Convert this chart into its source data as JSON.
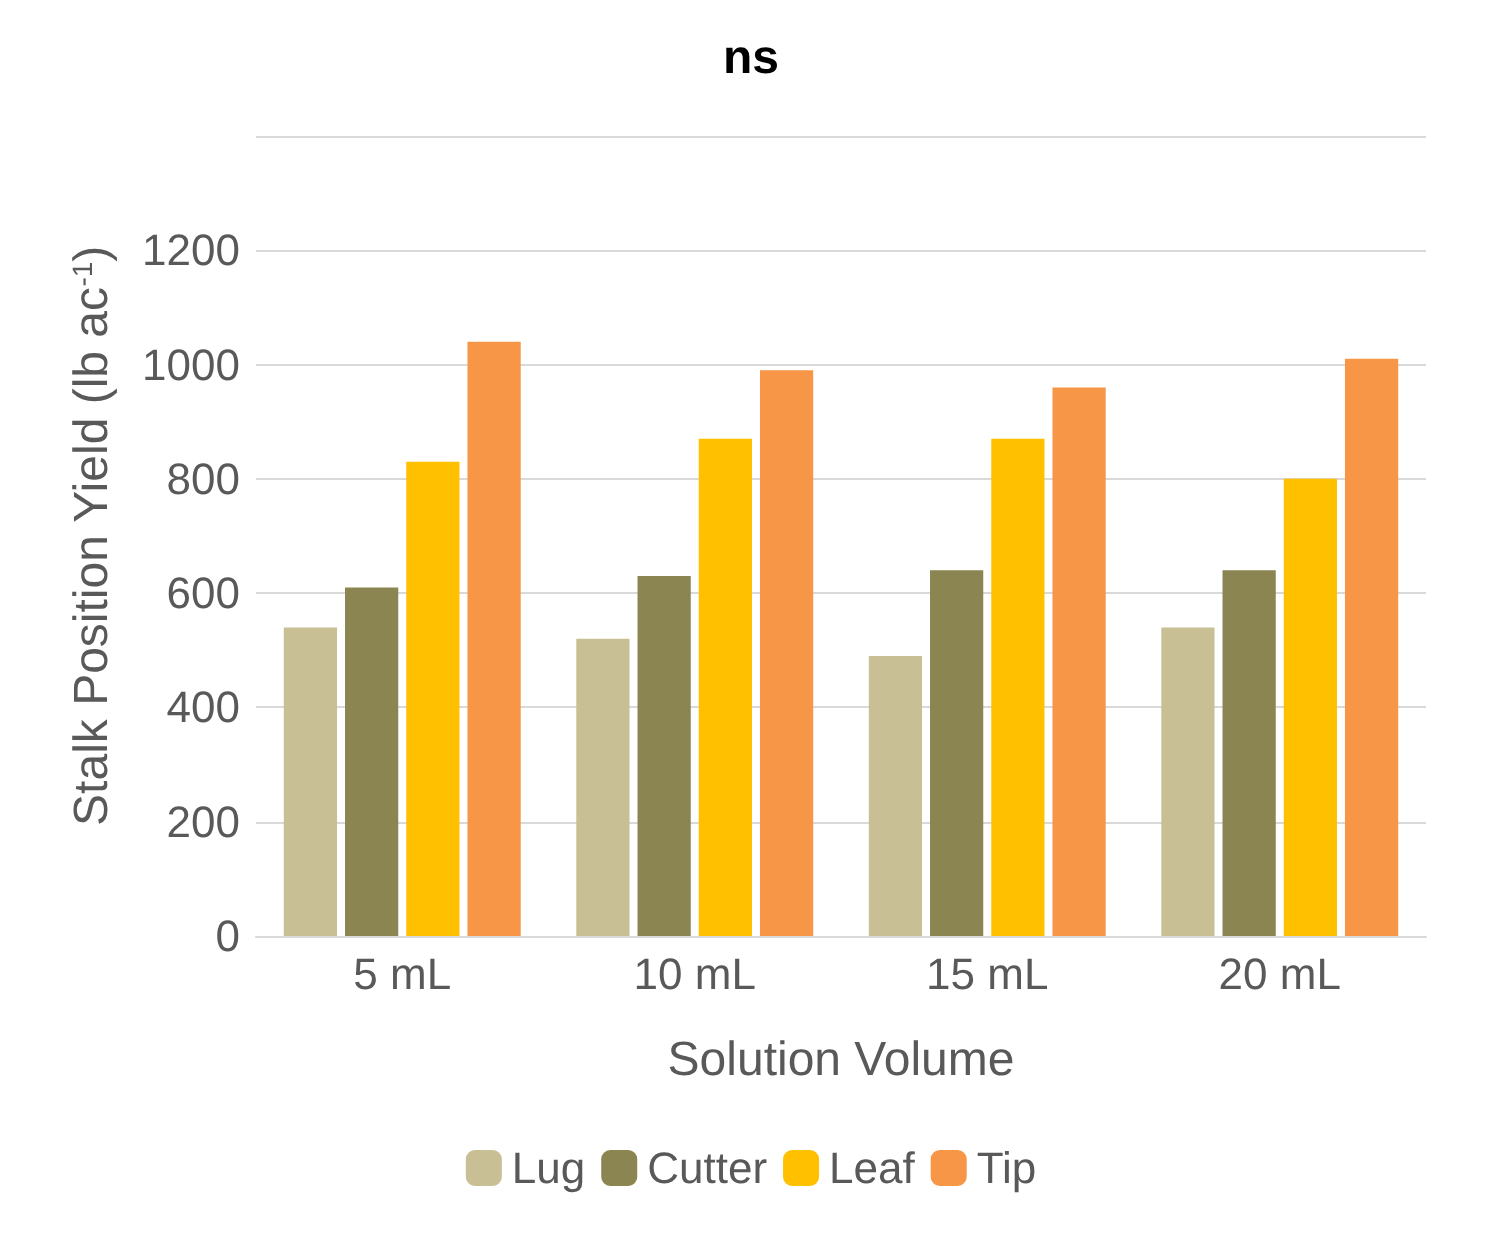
{
  "chart_data": {
    "type": "bar",
    "xlabel": "Solution Volume",
    "ylabel": "Stalk Position Yield (lb ac$^{-1}$)",
    "annotations": [
      "ns"
    ],
    "categories": [
      "5 mL",
      "10 mL",
      "15 mL",
      "20 mL"
    ],
    "series": [
      {
        "name": "Lug",
        "color": "#c9bf95",
        "values": [
          540,
          520,
          490,
          540
        ]
      },
      {
        "name": "Cutter",
        "color": "#8b8552",
        "values": [
          610,
          630,
          640,
          640
        ]
      },
      {
        "name": "Leaf",
        "color": "#ffc000",
        "values": [
          830,
          870,
          870,
          800
        ]
      },
      {
        "name": "Tip",
        "color": "#f79646",
        "values": [
          1040,
          990,
          960,
          1010
        ]
      }
    ],
    "ylim": [
      0,
      1400
    ],
    "yticks": [
      0,
      200,
      400,
      600,
      800,
      1000,
      1200,
      {
        "value": 1400,
        "label": null
      }
    ],
    "grid": "y",
    "legend": "bottom"
  }
}
